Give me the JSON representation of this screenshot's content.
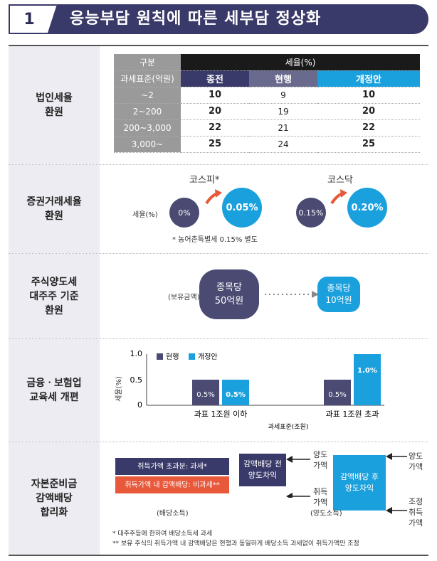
{
  "header": {
    "number": "1",
    "title": "응능부담 원칙에 따른 세부담 정상화"
  },
  "sections": {
    "corp": {
      "label": "법인세율\n환원"
    },
    "sec": {
      "label": "증권거래세율\n환원"
    },
    "cap": {
      "label": "주식양도세\n대주주 기준\n환원"
    },
    "fin": {
      "label": "금융ㆍ보험업\n교육세 개편"
    },
    "res": {
      "label": "자본준비금\n감액배당\n합리화"
    }
  },
  "corp_table": {
    "h_gubun": "구분",
    "h_rate": "세율(%)",
    "h_base": "과세표준(억원)",
    "h_prev": "종전",
    "h_cur": "현행",
    "h_new": "개정안",
    "rows": [
      {
        "base": "~2",
        "prev": "10",
        "cur": "9",
        "new": "10"
      },
      {
        "base": "2~200",
        "prev": "20",
        "cur": "19",
        "new": "20"
      },
      {
        "base": "200~3,000",
        "prev": "22",
        "cur": "21",
        "new": "22"
      },
      {
        "base": "3,000~",
        "prev": "25",
        "cur": "24",
        "new": "25"
      }
    ]
  },
  "sec_tax": {
    "kospi_title": "코스피*",
    "kosdaq_title": "코스닥",
    "rate_label": "세율(%)",
    "kospi_cur": "0%",
    "kospi_new": "0.05%",
    "kosdaq_cur": "0.15%",
    "kosdaq_new": "0.20%",
    "note": "* 농어촌특별세 0.15% 별도"
  },
  "cap_gain": {
    "holding_label": "(보유금액)",
    "cur": "종목당\n50억원",
    "new": "종목당\n10억원"
  },
  "fin_chart_text": {
    "legend_cur": "현행",
    "legend_new": "개정안"
  },
  "chart_data": {
    "type": "bar",
    "categories": [
      "과표 1조원 이하",
      "과표 1조원 초과"
    ],
    "series": [
      {
        "name": "현행",
        "values": [
          0.5,
          0.5
        ]
      },
      {
        "name": "개정안",
        "values": [
          0.5,
          1.0
        ]
      }
    ],
    "data_labels": [
      [
        "0.5%",
        "0.5%"
      ],
      [
        "0.5%",
        "1.0%"
      ]
    ],
    "ylabel": "세율(%)",
    "xlabel": "과세표준(조원)",
    "yticks": [
      "1.0",
      "0.5",
      "0"
    ],
    "ylim": [
      0,
      1.0
    ],
    "colors": {
      "cur": "#4a4a72",
      "new": "#1aa0dd"
    }
  },
  "reserve": {
    "over": "취득가액 초과분: 과세*",
    "within": "취득가액 내 감액배당: 비과세**",
    "div_income": "(배당소득)",
    "pre": "감액배당 전\n양도차익",
    "post": "감액배당 후\n양도차익",
    "transfer_price": "양도\n가액",
    "acq_price": "취득\n가액",
    "transfer_price2": "양도\n가액",
    "adj_acq": "조정\n취득\n가액",
    "transfer_income": "(양도소득)",
    "note1": "* 대주주등에 한하여 배당소득세 과세",
    "note2": "** 보유 주식의 취득가액 내 감액배당은 현행과 동일하게 배당소득 과세없이 취득가액만 조정"
  },
  "colors": {
    "navy": "#3a3a6a",
    "blue": "#1aa0dd",
    "red": "#e8583a",
    "label_bg": "#ececf2"
  }
}
